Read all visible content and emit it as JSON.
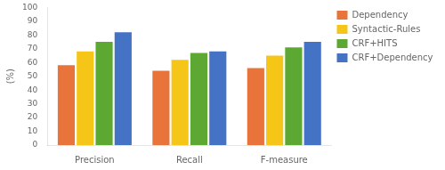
{
  "chart_data": {
    "type": "bar",
    "categories": [
      "Precision",
      "Recall",
      "F-measure"
    ],
    "series": [
      {
        "name": "Dependency",
        "color": "#E8743C",
        "values": [
          58,
          54,
          56
        ]
      },
      {
        "name": "Syntactic-Rules",
        "color": "#F5C518",
        "values": [
          68,
          62,
          65
        ]
      },
      {
        "name": "CRF+HITS",
        "color": "#5CA832",
        "values": [
          75,
          67,
          71
        ]
      },
      {
        "name": "CRF+Dependency",
        "color": "#4472C4",
        "values": [
          82,
          68,
          75
        ]
      }
    ],
    "ylabel": "(%)",
    "ylim": [
      0,
      100
    ],
    "yticks": [
      0,
      10,
      20,
      30,
      40,
      50,
      60,
      70,
      80,
      90,
      100
    ],
    "grid": false,
    "legend": "right"
  }
}
